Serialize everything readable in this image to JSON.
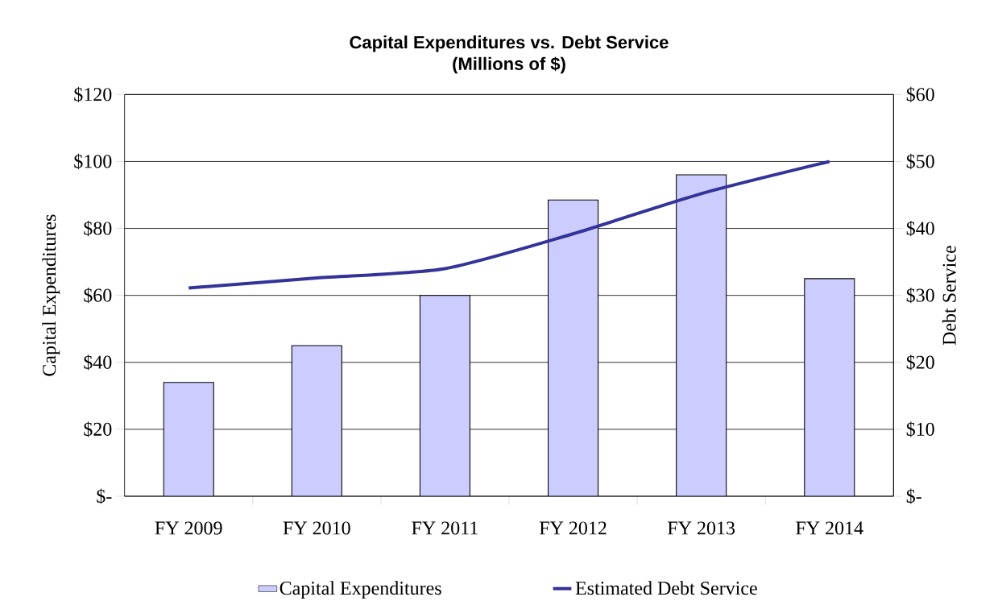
{
  "chart_data": {
    "type": "bar",
    "title": "Capital Expenditures vs. Debt Service",
    "subtitle": "(Millions of $)",
    "ylabel": "Capital Expenditures",
    "y2label": "Debt Service",
    "categories": [
      "FY 2009",
      "FY 2010",
      "FY 2011",
      "FY 2012",
      "FY 2013",
      "FY 2014"
    ],
    "series": [
      {
        "name": "Capital Expenditures",
        "color": "#ccccff",
        "values": [
          34,
          45,
          60,
          88.5,
          96,
          65
        ]
      },
      {
        "name": "Estimated Debt Service",
        "type": "line",
        "axis": "y2",
        "color": "#333399",
        "values": [
          31.1,
          32.6,
          34,
          39.2,
          45.2,
          50
        ]
      }
    ],
    "ylim": [
      0,
      120
    ],
    "yticks": [
      {
        "value": 0,
        "label": "$-"
      },
      {
        "value": 20,
        "label": "$20"
      },
      {
        "value": 40,
        "label": "$40"
      },
      {
        "value": 60,
        "label": "$60"
      },
      {
        "value": 80,
        "label": "$80"
      },
      {
        "value": 100,
        "label": "$100"
      },
      {
        "value": 120,
        "label": "$120"
      }
    ],
    "y2lim": [
      0,
      60
    ],
    "y2ticks": [
      {
        "value": 0,
        "label": "$-"
      },
      {
        "value": 10,
        "label": "$10"
      },
      {
        "value": 20,
        "label": "$20"
      },
      {
        "value": 30,
        "label": "$30"
      },
      {
        "value": 40,
        "label": "$40"
      },
      {
        "value": 50,
        "label": "$50"
      },
      {
        "value": 60,
        "label": "$60"
      }
    ],
    "grid": "y",
    "legend": "bottom"
  }
}
